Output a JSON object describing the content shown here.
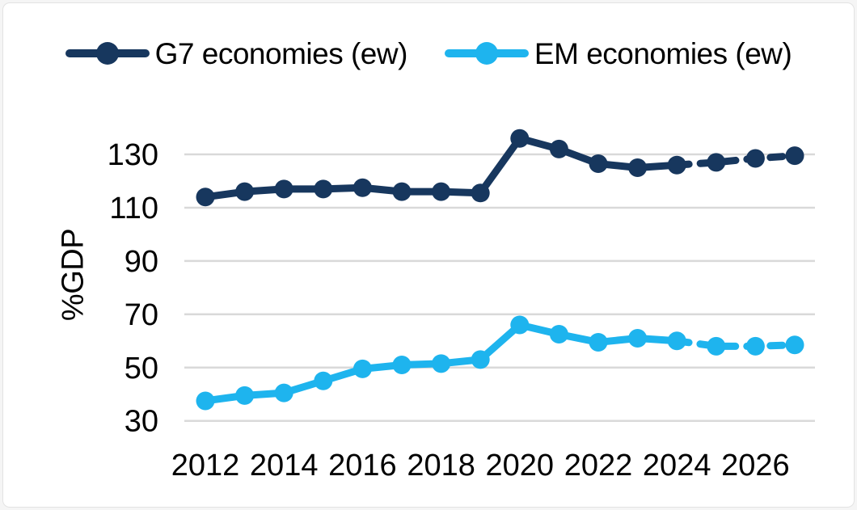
{
  "chart_data": {
    "type": "line",
    "title": "",
    "xlabel": "",
    "ylabel": "%GDP",
    "x": [
      2012,
      2013,
      2014,
      2015,
      2016,
      2017,
      2018,
      2019,
      2020,
      2021,
      2022,
      2023,
      2024,
      2025,
      2026,
      2027
    ],
    "series": [
      {
        "name": "G7 economies (ew)",
        "color": "#17375E",
        "values": [
          114,
          116,
          117,
          117,
          117.5,
          116,
          116,
          115.5,
          136,
          132,
          126.5,
          125,
          126,
          127,
          128.5,
          129.5
        ]
      },
      {
        "name": "EM economies (ew)",
        "color": "#1EB4EE",
        "values": [
          37.5,
          39.5,
          40.5,
          45,
          49.5,
          51,
          51.5,
          53,
          66,
          62.5,
          59.5,
          61,
          60,
          58,
          58,
          58.5
        ]
      }
    ],
    "yticks": [
      30,
      50,
      70,
      90,
      110,
      130
    ],
    "xticks": [
      2012,
      2014,
      2016,
      2018,
      2020,
      2022,
      2024,
      2026
    ],
    "ylim": [
      30,
      140
    ],
    "grid": "horizontal-only",
    "gridline_color": "#D9D9D9",
    "tick_label_color": "#000000",
    "legend_position": "top",
    "forecast_start_index": 12,
    "forecast_style": "dashed"
  }
}
